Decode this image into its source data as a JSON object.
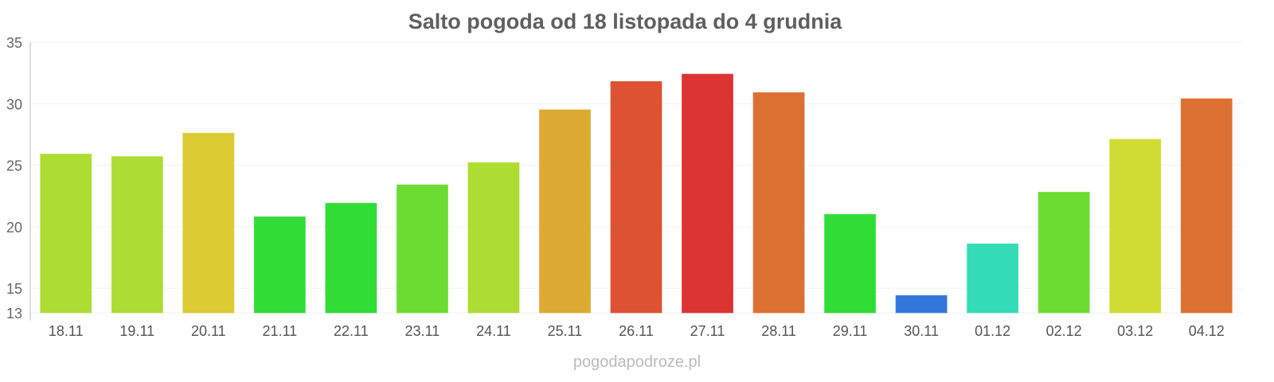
{
  "chart_data": {
    "type": "bar",
    "title": "Salto pogoda od 18 listopada do 4 grudnia",
    "source": "pogodapodroze.pl",
    "xlabel": "",
    "ylabel": "",
    "ylim": [
      13,
      35
    ],
    "yticks": [
      13,
      15,
      20,
      25,
      30,
      35
    ],
    "grid": true,
    "categories": [
      "18.11",
      "19.11",
      "20.11",
      "21.11",
      "22.11",
      "23.11",
      "24.11",
      "25.11",
      "26.11",
      "27.11",
      "28.11",
      "29.11",
      "30.11",
      "01.12",
      "02.12",
      "03.12",
      "04.12"
    ],
    "values": [
      25.9,
      25.7,
      27.6,
      20.8,
      21.9,
      23.4,
      25.2,
      29.5,
      31.8,
      32.4,
      30.9,
      21.0,
      14.4,
      18.6,
      22.8,
      27.1,
      30.4
    ],
    "colors": [
      "#addc33",
      "#addc33",
      "#dccb33",
      "#31dc37",
      "#31dc37",
      "#6cdc33",
      "#addc33",
      "#dcaa33",
      "#dc5233",
      "#dc3333",
      "#dc7033",
      "#31dc37",
      "#3377dc",
      "#33dcb7",
      "#6cdc33",
      "#cfdc33",
      "#dc7033"
    ]
  }
}
